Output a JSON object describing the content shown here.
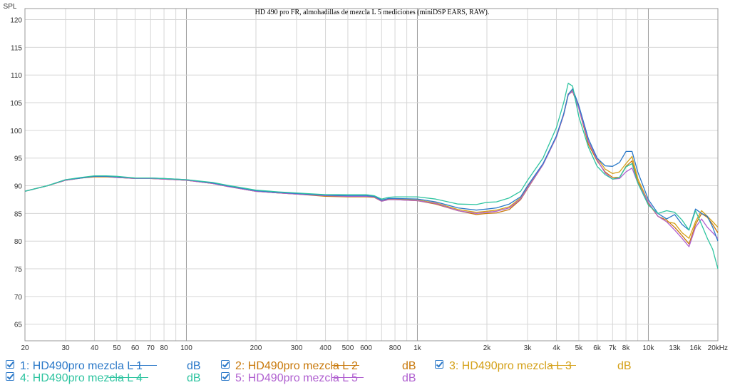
{
  "chart_data": {
    "type": "line",
    "title": "HD 490 pro FR, almohadillas de mezcla L 5 mediciones (miniDSP EARS, RAW).",
    "ylabel": "SPL",
    "xlabel": "",
    "xscale": "log",
    "xlim": [
      20,
      20000
    ],
    "ylim": [
      62,
      122
    ],
    "grid": true,
    "y_ticks": [
      65,
      70,
      75,
      80,
      85,
      90,
      95,
      100,
      105,
      110,
      115,
      120
    ],
    "x_ticks": [
      {
        "value": 20,
        "label": "20"
      },
      {
        "value": 30,
        "label": "30"
      },
      {
        "value": 40,
        "label": "40"
      },
      {
        "value": 50,
        "label": "50"
      },
      {
        "value": 60,
        "label": "60"
      },
      {
        "value": 70,
        "label": "70"
      },
      {
        "value": 80,
        "label": "80"
      },
      {
        "value": 100,
        "label": "100"
      },
      {
        "value": 200,
        "label": "200"
      },
      {
        "value": 300,
        "label": "300"
      },
      {
        "value": 400,
        "label": "400"
      },
      {
        "value": 500,
        "label": "500"
      },
      {
        "value": 600,
        "label": "600"
      },
      {
        "value": 800,
        "label": "800"
      },
      {
        "value": 1000,
        "label": "1k"
      },
      {
        "value": 2000,
        "label": "2k"
      },
      {
        "value": 3000,
        "label": "3k"
      },
      {
        "value": 4000,
        "label": "4k"
      },
      {
        "value": 5000,
        "label": "5k"
      },
      {
        "value": 6000,
        "label": "6k"
      },
      {
        "value": 7000,
        "label": "7k"
      },
      {
        "value": 8000,
        "label": "8k"
      },
      {
        "value": 10000,
        "label": "10k"
      },
      {
        "value": 13000,
        "label": "13k"
      },
      {
        "value": 16000,
        "label": "16k"
      },
      {
        "value": 20000,
        "label": "20kHz"
      }
    ],
    "x": [
      20,
      25,
      30,
      35,
      40,
      45,
      50,
      60,
      70,
      80,
      100,
      130,
      150,
      200,
      250,
      300,
      400,
      500,
      600,
      650,
      700,
      750,
      800,
      1000,
      1200,
      1500,
      1800,
      2000,
      2200,
      2500,
      2800,
      3000,
      3500,
      4000,
      4300,
      4500,
      4700,
      5000,
      5500,
      6000,
      6500,
      7000,
      7500,
      8000,
      8500,
      9000,
      10000,
      11000,
      12000,
      13000,
      14000,
      15000,
      16000,
      17000,
      18000,
      19000,
      20000
    ],
    "series": [
      {
        "name": "1: HD490pro mezcla L 1",
        "color": "#2a78c8",
        "unit": "dB",
        "values": [
          89,
          90,
          91.1,
          91.4,
          91.7,
          91.7,
          91.6,
          91.4,
          91.4,
          91.3,
          91.1,
          90.5,
          90,
          89.1,
          88.8,
          88.6,
          88.3,
          88.2,
          88.2,
          88.1,
          87.4,
          87.7,
          87.7,
          87.6,
          87.1,
          86,
          85.6,
          85.8,
          86,
          86.7,
          88,
          90,
          94,
          99,
          103,
          106.5,
          107.5,
          104.5,
          98.5,
          95,
          93.6,
          93.5,
          94.2,
          96.2,
          96.2,
          92.5,
          87.5,
          85,
          84,
          84.8,
          83,
          82,
          85.8,
          85,
          84.5,
          82.5,
          80
        ]
      },
      {
        "name": "2: HD490pro mezcla L 2",
        "color": "#c8780a",
        "unit": "dB",
        "values": [
          89,
          90,
          91,
          91.4,
          91.6,
          91.6,
          91.5,
          91.3,
          91.3,
          91.2,
          91,
          90.4,
          89.9,
          89,
          88.7,
          88.5,
          88.1,
          88,
          88,
          87.9,
          87.2,
          87.5,
          87.5,
          87.3,
          86.7,
          85.5,
          84.8,
          85,
          85.1,
          85.7,
          87.5,
          89.5,
          93.8,
          98.8,
          102.8,
          106.5,
          107,
          104,
          97.5,
          94.5,
          92.5,
          91.5,
          91.5,
          93.5,
          94.5,
          90.8,
          86.8,
          84.5,
          83.8,
          82.5,
          81,
          79.5,
          83,
          85,
          84.3,
          83,
          81.5
        ]
      },
      {
        "name": "3: HD490pro mezcla L 3",
        "color": "#d4a017",
        "unit": "dB",
        "values": [
          89,
          90,
          91,
          91.4,
          91.7,
          91.7,
          91.5,
          91.3,
          91.3,
          91.2,
          91,
          90.4,
          89.9,
          89,
          88.7,
          88.5,
          88.2,
          88.1,
          88.1,
          88,
          87.3,
          87.6,
          87.6,
          87.4,
          86.9,
          85.7,
          85.2,
          85.4,
          85.6,
          86.2,
          87.8,
          89.8,
          93.9,
          98.9,
          102.9,
          106.6,
          107.2,
          104.2,
          98,
          95,
          93,
          92.2,
          92.5,
          94,
          95.3,
          91.3,
          87,
          84.5,
          83.5,
          83.2,
          81.5,
          80.5,
          83.5,
          85.5,
          84.5,
          83.5,
          82.5
        ]
      },
      {
        "name": "4: HD490pro mezcla L 4",
        "color": "#2ec4a0",
        "unit": "dB",
        "values": [
          89,
          90,
          91.1,
          91.5,
          91.8,
          91.8,
          91.7,
          91.4,
          91.4,
          91.3,
          91.1,
          90.6,
          90.1,
          89.2,
          88.9,
          88.7,
          88.4,
          88.4,
          88.4,
          88.2,
          87.6,
          87.9,
          88,
          88,
          87.6,
          86.7,
          86.6,
          87,
          87.1,
          87.8,
          89,
          91,
          95,
          100.5,
          105,
          108.5,
          108,
          102.5,
          97,
          93.5,
          92,
          91.2,
          91.5,
          93.4,
          94,
          90.5,
          86.5,
          85,
          85.5,
          85.2,
          83.8,
          82,
          85.5,
          83,
          80.5,
          78.5,
          75
        ]
      },
      {
        "name": "5: HD490pro mezcla L 5",
        "color": "#b060d0",
        "unit": "dB",
        "values": [
          89,
          90,
          91,
          91.4,
          91.7,
          91.7,
          91.5,
          91.3,
          91.3,
          91.2,
          91,
          90.4,
          89.9,
          89,
          88.7,
          88.5,
          88.2,
          88.1,
          88.1,
          88,
          87.2,
          87.5,
          87.5,
          87.3,
          86.8,
          85.5,
          85,
          85.2,
          85.4,
          86,
          87.6,
          89.6,
          93.8,
          98.8,
          102.8,
          106.4,
          107.1,
          104,
          98,
          94.7,
          92.3,
          91.2,
          91.3,
          92.5,
          93.2,
          90.5,
          87,
          84.5,
          83.5,
          82,
          80.5,
          79,
          82.5,
          84,
          82.5,
          81.5,
          80.5
        ]
      }
    ],
    "draw_order": [
      1,
      2,
      4,
      0,
      3
    ]
  }
}
